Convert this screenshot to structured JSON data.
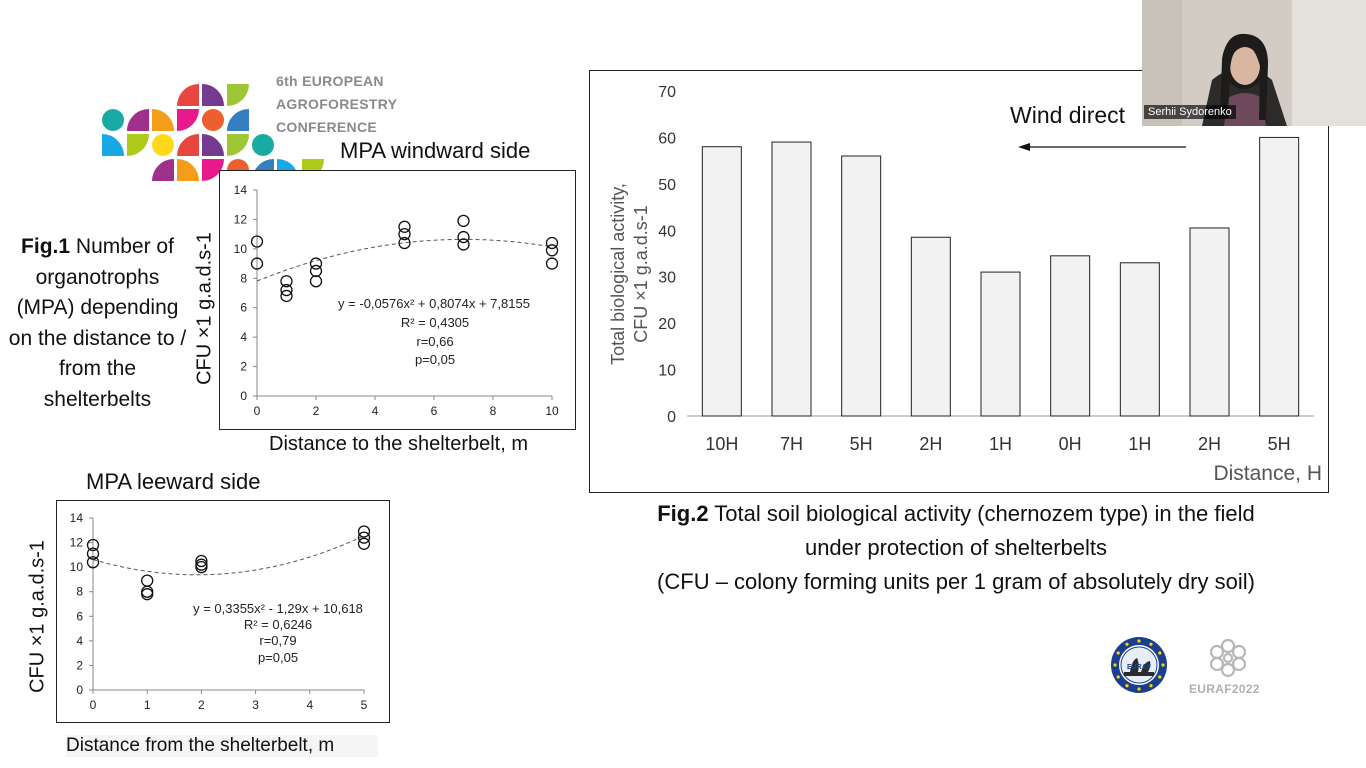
{
  "conference": {
    "line1": "6th EUROPEAN",
    "line2": "AGROFORESTRY",
    "line3": "CONFERENCE"
  },
  "fig1": {
    "bold": "Fig.1",
    "text": " Number of organotrophs (MPA) depending on the distance to / from the shelterbelts"
  },
  "chart1": {
    "title": "MPA windward side",
    "xlabel": "Distance to the shelterbelt, m",
    "ylabel": "CFU ×1 g.a.d.s-1",
    "equation": "y = -0,0576x² + 0,8074x + 7,8155",
    "r2": "R² = 0,4305",
    "r": "r=0,66",
    "p": "p=0,05"
  },
  "chart2": {
    "title": "MPA leeward side",
    "xlabel": "Distance from the shelterbelt, m",
    "ylabel": "CFU ×1 g.a.d.s-1",
    "equation": "y = 0,3355x² - 1,29x + 10,618",
    "r2": "R² = 0,6246",
    "r": "r=0,79",
    "p": "p=0,05"
  },
  "chart3": {
    "ylabel_line1": "Total biological activity,",
    "ylabel_line2": "CFU ×1 g.a.d.s-1",
    "xlabel": "Distance, H",
    "wind_label": "Wind direct"
  },
  "fig2": {
    "bold": "Fig.2",
    "line1": " Total soil biological activity (chernozem type) in the field",
    "line2": "under protection of shelterbelts",
    "line3": "(CFU – colony forming units per 1 gram of absolutely dry soil)"
  },
  "video": {
    "name": "Serhii Sydorenko"
  },
  "euraf": {
    "badge": "EURAF",
    "label": "EURAF2022"
  },
  "chart_data": [
    {
      "type": "scatter",
      "title": "MPA windward side",
      "xlabel": "Distance to the shelterbelt, m",
      "ylabel": "CFU ×1 g.a.d.s-1",
      "xlim": [
        0,
        10
      ],
      "ylim": [
        0,
        14
      ],
      "xticks": [
        0,
        2,
        4,
        6,
        8,
        10
      ],
      "yticks": [
        0,
        2,
        4,
        6,
        8,
        10,
        12,
        14
      ],
      "points": [
        [
          0,
          10.5
        ],
        [
          0,
          9.0
        ],
        [
          1,
          7.8
        ],
        [
          1,
          7.2
        ],
        [
          1,
          6.8
        ],
        [
          2,
          9.0
        ],
        [
          2,
          8.5
        ],
        [
          2,
          7.8
        ],
        [
          5,
          11.5
        ],
        [
          5,
          11.0
        ],
        [
          5,
          10.4
        ],
        [
          7,
          11.9
        ],
        [
          7,
          10.8
        ],
        [
          7,
          10.3
        ],
        [
          10,
          10.4
        ],
        [
          10,
          9.9
        ],
        [
          10,
          9.0
        ]
      ],
      "trend": {
        "a": -0.0576,
        "b": 0.8074,
        "c": 7.8155
      }
    },
    {
      "type": "scatter",
      "title": "MPA leeward side",
      "xlabel": "Distance from the shelterbelt, m",
      "ylabel": "CFU ×1 g.a.d.s-1",
      "xlim": [
        0,
        5
      ],
      "ylim": [
        0,
        14
      ],
      "xticks": [
        0,
        1,
        2,
        3,
        4,
        5
      ],
      "yticks": [
        0,
        2,
        4,
        6,
        8,
        10,
        12,
        14
      ],
      "points": [
        [
          0,
          11.8
        ],
        [
          0,
          11.1
        ],
        [
          0,
          10.4
        ],
        [
          1,
          8.9
        ],
        [
          1,
          8.0
        ],
        [
          1,
          7.8
        ],
        [
          2,
          10.5
        ],
        [
          2,
          10.2
        ],
        [
          2,
          10.0
        ],
        [
          5,
          12.9
        ],
        [
          5,
          12.4
        ],
        [
          5,
          11.9
        ]
      ],
      "trend": {
        "a": 0.3355,
        "b": -1.29,
        "c": 10.618
      }
    },
    {
      "type": "bar",
      "ylabel": "Total biological activity, CFU ×1 g.a.d.s-1",
      "xlabel": "Distance, H",
      "categories": [
        "10H",
        "7H",
        "5H",
        "2H",
        "1H",
        "0H",
        "1H",
        "2H",
        "5H"
      ],
      "values": [
        58,
        59,
        56,
        38.5,
        31,
        34.5,
        33,
        40.5,
        60
      ],
      "ylim": [
        0,
        70
      ],
      "yticks": [
        0,
        10,
        20,
        30,
        40,
        50,
        60,
        70
      ]
    }
  ]
}
